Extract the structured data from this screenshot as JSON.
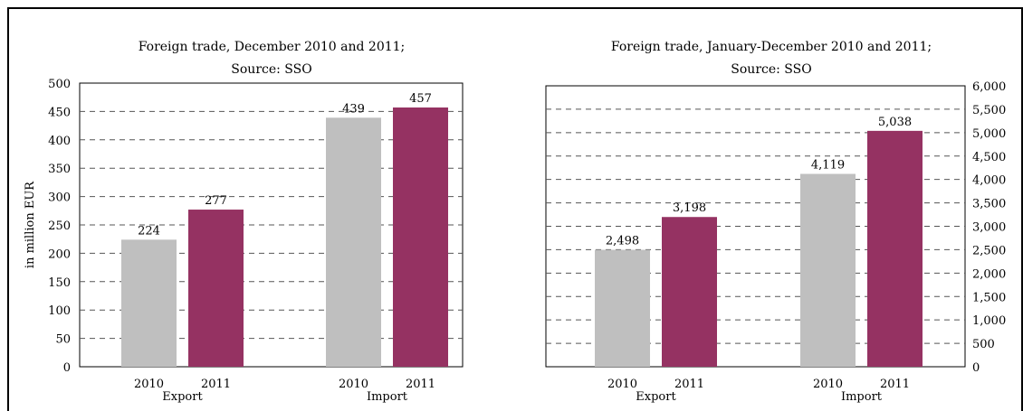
{
  "chart_data": [
    {
      "type": "bar",
      "title": "Foreign trade, December 2010 and 2011;",
      "subtitle": "Source: SSO",
      "ylabel": "in million EUR",
      "xlabel": "",
      "ylim": [
        0,
        500
      ],
      "y_ticks": [
        "0",
        "50",
        "100",
        "150",
        "200",
        "250",
        "300",
        "350",
        "400",
        "450",
        "500"
      ],
      "y_axis_side": "left",
      "grid": true,
      "groups": [
        "Export",
        "Import"
      ],
      "series_labels": [
        "2010",
        "2011"
      ],
      "values": [
        [
          224,
          277
        ],
        [
          439,
          457
        ]
      ],
      "data_labels": [
        [
          "224",
          "277"
        ],
        [
          "439",
          "457"
        ]
      ],
      "colors": [
        "#bfbfbf",
        "#953262"
      ]
    },
    {
      "type": "bar",
      "title": "Foreign trade, January-December 2010 and 2011;",
      "subtitle": "Source: SSO",
      "ylabel": "",
      "xlabel": "",
      "ylim": [
        0,
        6000
      ],
      "y_ticks": [
        "0",
        "500",
        "1,000",
        "1,500",
        "2,000",
        "2,500",
        "3,000",
        "3,500",
        "4,000",
        "4,500",
        "5,000",
        "5,500",
        "6,000"
      ],
      "y_axis_side": "right",
      "grid": true,
      "groups": [
        "Export",
        "Import"
      ],
      "series_labels": [
        "2010",
        "2011"
      ],
      "values": [
        [
          2498,
          3198
        ],
        [
          4119,
          5038
        ]
      ],
      "data_labels": [
        [
          "2,498",
          "3,198"
        ],
        [
          "4,119",
          "5,038"
        ]
      ],
      "colors": [
        "#bfbfbf",
        "#953262"
      ]
    }
  ]
}
